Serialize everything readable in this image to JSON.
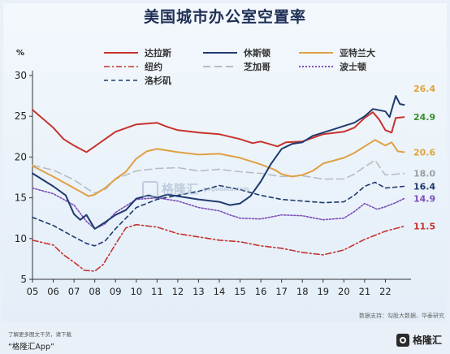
{
  "chart_data": {
    "type": "line",
    "title": "美国城市办公室空置率",
    "ylabel": "%",
    "ylim": [
      5,
      30
    ],
    "yticks": [
      5,
      10,
      15,
      20,
      25,
      30
    ],
    "xlim": [
      2005,
      2022.9
    ],
    "xticks": [
      "05",
      "06",
      "07",
      "08",
      "09",
      "10",
      "11",
      "12",
      "13",
      "14",
      "15",
      "16",
      "17",
      "18",
      "19",
      "20",
      "21",
      "22"
    ],
    "grid": false,
    "legend_position": "top",
    "series": [
      {
        "name": "达拉斯",
        "color": "#c8322e",
        "dash": "solid",
        "end_label": "24.9",
        "label_color": "#3a8f2f",
        "points": [
          [
            2005,
            25.8
          ],
          [
            2006,
            23.6
          ],
          [
            2006.5,
            22.2
          ],
          [
            2007,
            21.4
          ],
          [
            2007.6,
            20.6
          ],
          [
            2008,
            21.3
          ],
          [
            2008.5,
            22.2
          ],
          [
            2009,
            23.1
          ],
          [
            2010,
            24.0
          ],
          [
            2011,
            24.2
          ],
          [
            2011.5,
            23.7
          ],
          [
            2012,
            23.3
          ],
          [
            2013,
            23.0
          ],
          [
            2014,
            22.8
          ],
          [
            2015,
            22.2
          ],
          [
            2015.6,
            21.7
          ],
          [
            2016,
            21.9
          ],
          [
            2016.8,
            21.3
          ],
          [
            2017.2,
            21.8
          ],
          [
            2018,
            21.9
          ],
          [
            2019,
            22.8
          ],
          [
            2020,
            23.1
          ],
          [
            2020.5,
            23.6
          ],
          [
            2021,
            24.8
          ],
          [
            2021.4,
            25.5
          ],
          [
            2021.7,
            24.6
          ],
          [
            2022,
            23.3
          ],
          [
            2022.3,
            23.0
          ],
          [
            2022.5,
            24.8
          ],
          [
            2022.9,
            24.9
          ]
        ]
      },
      {
        "name": "休斯顿",
        "color": "#1f3a6e",
        "dash": "solid",
        "end_label": "26.4",
        "label_color": "#e0a43a",
        "points": [
          [
            2005,
            18.0
          ],
          [
            2005.5,
            17.2
          ],
          [
            2006,
            16.4
          ],
          [
            2006.6,
            15.3
          ],
          [
            2007,
            13.0
          ],
          [
            2007.3,
            12.3
          ],
          [
            2007.6,
            12.9
          ],
          [
            2008,
            11.2
          ],
          [
            2008.5,
            12.0
          ],
          [
            2009,
            12.9
          ],
          [
            2009.5,
            13.5
          ],
          [
            2010,
            14.9
          ],
          [
            2010.6,
            15.3
          ],
          [
            2011,
            15.0
          ],
          [
            2011.5,
            15.4
          ],
          [
            2012,
            15.2
          ],
          [
            2013,
            14.8
          ],
          [
            2014,
            14.5
          ],
          [
            2014.5,
            14.1
          ],
          [
            2015,
            14.3
          ],
          [
            2015.5,
            15.2
          ],
          [
            2016,
            17.0
          ],
          [
            2016.5,
            19.2
          ],
          [
            2017,
            21.0
          ],
          [
            2017.5,
            21.6
          ],
          [
            2018,
            21.8
          ],
          [
            2018.5,
            22.6
          ],
          [
            2019,
            23.0
          ],
          [
            2019.5,
            23.4
          ],
          [
            2020,
            23.8
          ],
          [
            2020.5,
            24.2
          ],
          [
            2021,
            25.0
          ],
          [
            2021.4,
            25.9
          ],
          [
            2022,
            25.6
          ],
          [
            2022.2,
            24.9
          ],
          [
            2022.5,
            27.5
          ],
          [
            2022.7,
            26.5
          ],
          [
            2022.9,
            26.4
          ]
        ]
      },
      {
        "name": "亚特兰大",
        "color": "#e0a043",
        "dash": "solid",
        "end_label": "20.6",
        "label_color": "#e0a43a",
        "points": [
          [
            2005,
            18.9
          ],
          [
            2006,
            17.6
          ],
          [
            2007,
            16.2
          ],
          [
            2007.7,
            15.2
          ],
          [
            2008,
            15.4
          ],
          [
            2008.5,
            16.2
          ],
          [
            2009,
            17.3
          ],
          [
            2009.5,
            18.2
          ],
          [
            2010,
            19.8
          ],
          [
            2010.5,
            20.7
          ],
          [
            2011,
            21.0
          ],
          [
            2012,
            20.6
          ],
          [
            2013,
            20.3
          ],
          [
            2014,
            20.4
          ],
          [
            2015,
            19.9
          ],
          [
            2016,
            19.1
          ],
          [
            2016.7,
            18.4
          ],
          [
            2017,
            17.9
          ],
          [
            2017.5,
            17.6
          ],
          [
            2018,
            17.8
          ],
          [
            2018.5,
            18.3
          ],
          [
            2019,
            19.2
          ],
          [
            2020,
            19.9
          ],
          [
            2020.5,
            20.5
          ],
          [
            2021,
            21.3
          ],
          [
            2021.5,
            22.1
          ],
          [
            2022,
            21.4
          ],
          [
            2022.3,
            21.8
          ],
          [
            2022.6,
            20.7
          ],
          [
            2022.9,
            20.6
          ]
        ]
      },
      {
        "name": "纽约",
        "color": "#c8322e",
        "dash": "dashdot",
        "end_label": "11.5",
        "label_color": "#c8322e",
        "points": [
          [
            2005,
            9.8
          ],
          [
            2006,
            9.2
          ],
          [
            2006.5,
            8.0
          ],
          [
            2007,
            7.1
          ],
          [
            2007.5,
            6.1
          ],
          [
            2008,
            6.0
          ],
          [
            2008.4,
            6.8
          ],
          [
            2009,
            9.3
          ],
          [
            2009.5,
            11.3
          ],
          [
            2010,
            11.7
          ],
          [
            2011,
            11.4
          ],
          [
            2012,
            10.6
          ],
          [
            2013,
            10.2
          ],
          [
            2014,
            9.8
          ],
          [
            2015,
            9.6
          ],
          [
            2016,
            9.1
          ],
          [
            2017,
            8.8
          ],
          [
            2018,
            8.3
          ],
          [
            2019,
            8.0
          ],
          [
            2020,
            8.6
          ],
          [
            2021,
            9.9
          ],
          [
            2022,
            10.9
          ],
          [
            2022.9,
            11.5
          ]
        ]
      },
      {
        "name": "芝加哥",
        "color": "#b8bcc2",
        "dash": "longdash",
        "end_label": "18.0",
        "label_color": "#9aa0a6",
        "points": [
          [
            2005,
            19.0
          ],
          [
            2006,
            18.4
          ],
          [
            2007,
            17.2
          ],
          [
            2007.7,
            16.0
          ],
          [
            2008,
            15.6
          ],
          [
            2008.5,
            16.0
          ],
          [
            2009,
            17.3
          ],
          [
            2010,
            18.3
          ],
          [
            2011,
            18.6
          ],
          [
            2012,
            18.7
          ],
          [
            2013,
            18.3
          ],
          [
            2014,
            18.5
          ],
          [
            2015,
            18.2
          ],
          [
            2016,
            18.0
          ],
          [
            2017,
            17.6
          ],
          [
            2018,
            17.7
          ],
          [
            2019,
            17.3
          ],
          [
            2020,
            17.3
          ],
          [
            2020.5,
            17.9
          ],
          [
            2021,
            18.8
          ],
          [
            2021.5,
            19.6
          ],
          [
            2022,
            17.8
          ],
          [
            2022.5,
            17.9
          ],
          [
            2022.9,
            18.0
          ]
        ]
      },
      {
        "name": "波士顿",
        "color": "#7c4fb8",
        "dash": "dotted",
        "end_label": "14.9",
        "label_color": "#7c4fb8",
        "points": [
          [
            2005,
            16.2
          ],
          [
            2006,
            15.5
          ],
          [
            2007,
            14.1
          ],
          [
            2007.6,
            12.1
          ],
          [
            2008,
            11.2
          ],
          [
            2008.5,
            11.8
          ],
          [
            2009,
            13.2
          ],
          [
            2010,
            14.8
          ],
          [
            2011,
            15.0
          ],
          [
            2012,
            14.6
          ],
          [
            2013,
            13.8
          ],
          [
            2014,
            13.4
          ],
          [
            2014.5,
            12.9
          ],
          [
            2015,
            12.5
          ],
          [
            2016,
            12.4
          ],
          [
            2017,
            12.9
          ],
          [
            2018,
            12.8
          ],
          [
            2019,
            12.3
          ],
          [
            2020,
            12.5
          ],
          [
            2020.5,
            13.3
          ],
          [
            2021,
            14.3
          ],
          [
            2021.6,
            13.6
          ],
          [
            2022,
            13.9
          ],
          [
            2022.5,
            14.4
          ],
          [
            2022.9,
            14.9
          ]
        ]
      },
      {
        "name": "洛杉矶",
        "color": "#1f3a6e",
        "dash": "dashed",
        "end_label": "16.4",
        "label_color": "#1f3a6e",
        "points": [
          [
            2005,
            12.6
          ],
          [
            2006,
            11.6
          ],
          [
            2007,
            10.2
          ],
          [
            2007.6,
            9.4
          ],
          [
            2008,
            9.1
          ],
          [
            2008.5,
            9.7
          ],
          [
            2009,
            11.2
          ],
          [
            2010,
            13.8
          ],
          [
            2011,
            14.8
          ],
          [
            2012,
            15.3
          ],
          [
            2013,
            15.8
          ],
          [
            2014,
            16.5
          ],
          [
            2015,
            16.0
          ],
          [
            2016,
            15.3
          ],
          [
            2017,
            14.8
          ],
          [
            2018,
            14.6
          ],
          [
            2019,
            14.4
          ],
          [
            2020,
            14.5
          ],
          [
            2020.5,
            15.3
          ],
          [
            2021,
            16.4
          ],
          [
            2021.5,
            16.9
          ],
          [
            2022,
            16.2
          ],
          [
            2022.9,
            16.4
          ]
        ]
      }
    ],
    "source": "数据支持：勾股大数据、华泰研究"
  },
  "watermark": {
    "brand": "格隆汇",
    "url": "gogudata.com"
  },
  "footer": {
    "note": "了解更多图文干货，请下载",
    "app": "“格隆汇App”",
    "logo_text": "格隆汇"
  },
  "colors": {
    "background": "#e9f0f7",
    "title": "#1f2f55"
  }
}
